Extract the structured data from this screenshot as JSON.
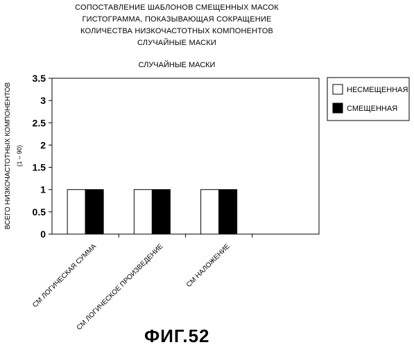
{
  "title_lines": [
    "СОПОСТАВЛЕНИЕ ШАБЛОНОВ СМЕЩЕННЫХ МАСОК",
    "ГИСТОГРАММА, ПОКАЗЫВАЮЩАЯ СОКРАЩЕНИЕ",
    "КОЛИЧЕСТВА НИЗКОЧАСТОТНЫХ КОМПОНЕНТОВ",
    "СЛУЧАЙНЫЕ МАСКИ"
  ],
  "figure_label": "ФИГ.52",
  "chart_data": {
    "type": "bar",
    "title": "СЛУЧАЙНЫЕ МАСКИ",
    "ylabel": "ВСЕГО НИЗКОЧАСТОТНЫХ КОМПОНЕНТОВ",
    "ylabel_sub": "(1 – 90)",
    "xlabel": "",
    "ylim": [
      0,
      3.5
    ],
    "yticks": [
      0,
      0.5,
      1,
      1.5,
      2,
      2.5,
      3,
      3.5
    ],
    "ytick_labels": [
      "0",
      "0.5",
      "1",
      "1.5",
      "2",
      "2.5",
      "3",
      "3.5"
    ],
    "categories": [
      "СМ ЛОГИЧЕСКАЯ СУММА",
      "СМ ЛОГИЧЕСКОЕ ПРОИЗВЕДЕНИЕ",
      "СМ НАЛОЖЕНИЕ"
    ],
    "category_slots": 4,
    "series": [
      {
        "name": "НЕСМЕЩЕННАЯ",
        "values": [
          1.0,
          1.0,
          1.0
        ],
        "color": "#ffffff"
      },
      {
        "name": "СМЕЩЕННАЯ",
        "values": [
          1.0,
          1.0,
          1.0
        ],
        "color": "#000000"
      }
    ],
    "grid": false,
    "legend_position": "right"
  }
}
